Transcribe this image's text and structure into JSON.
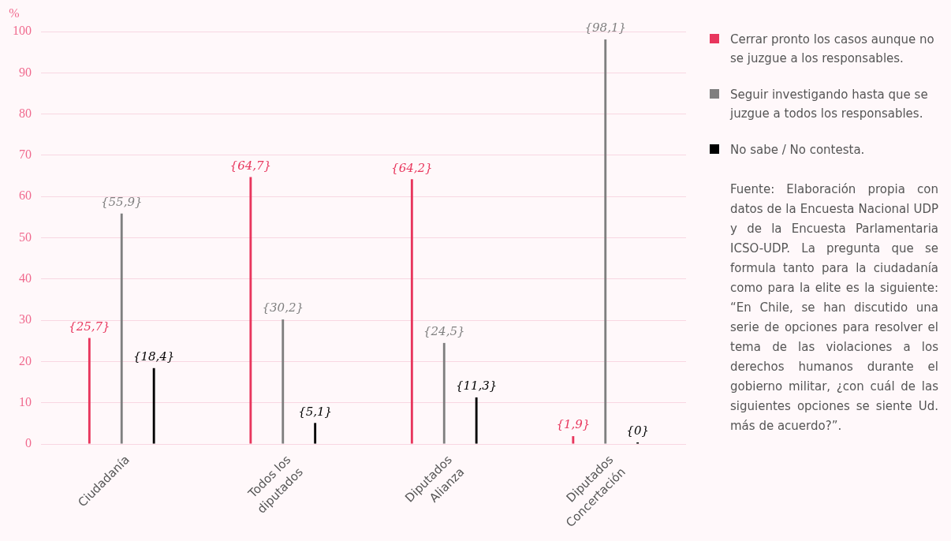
{
  "chart_data": {
    "type": "bar",
    "ylabel": "%",
    "categories": [
      "Ciudadanía",
      "Todos los\ndiputados",
      "Diputados\nAlianza",
      "Diputados\nConcertación"
    ],
    "series": [
      {
        "name": "Cerrar pronto los casos aunque no se juzgue a los responsables.",
        "color": "#e8365d",
        "values": [
          25.7,
          64.7,
          64.2,
          1.9
        ],
        "value_labels": [
          "{25,7}",
          "{64,7}",
          "{64,2}",
          "{1,9}"
        ]
      },
      {
        "name": "Seguir investigando hasta que se juzgue a todos los responsables.",
        "color": "#7f7f7f",
        "values": [
          55.9,
          30.2,
          24.5,
          98.1
        ],
        "value_labels": [
          "{55,9}",
          "{30,2}",
          "{24,5}",
          "{98,1}"
        ]
      },
      {
        "name": "No sabe / No contesta.",
        "color": "#000000",
        "values": [
          18.4,
          5.1,
          11.3,
          0
        ],
        "value_labels": [
          "{18,4}",
          "{5,1}",
          "{11,3}",
          "{0}"
        ]
      }
    ],
    "ylim": [
      0,
      100
    ],
    "yticks": [
      0,
      10,
      20,
      30,
      40,
      50,
      60,
      70,
      80,
      90,
      100
    ],
    "grid": "y",
    "legend": "right",
    "annotations": [
      "Fuente: Elaboración propia con datos de la Encuesta Nacional UDP y de la Encuesta Parlamentaria ICSO-UDP. La pregunta que se formula tanto para la ciudadanía como para la elite es la siguiente: “En Chile, se han discutido una serie de opciones para resolver el tema de las violaciones a los derechos humanos durante el gobierno militar, ¿con cuál de las siguientes opciones se siente Ud. más de acuerdo?”."
    ]
  }
}
